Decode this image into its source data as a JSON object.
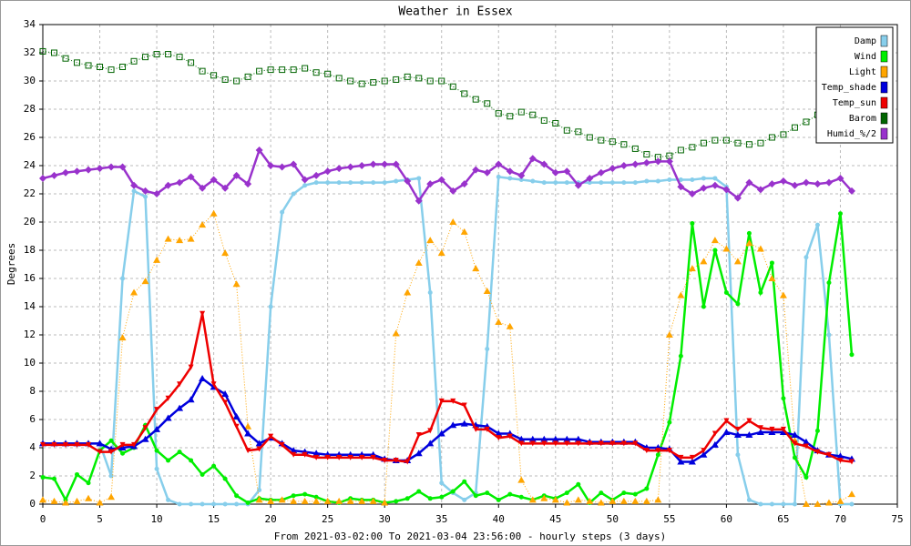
{
  "chart_data": {
    "type": "line",
    "title": "Weather in Essex",
    "y_label": "Degrees",
    "x_label": "From 2021-03-02:00 To 2021-03-04 23:56:00 - hourly steps (3 days)",
    "x": [
      0,
      1,
      2,
      3,
      4,
      5,
      6,
      7,
      8,
      9,
      10,
      11,
      12,
      13,
      14,
      15,
      16,
      17,
      18,
      19,
      20,
      21,
      22,
      23,
      24,
      25,
      26,
      27,
      28,
      29,
      30,
      31,
      32,
      33,
      34,
      35,
      36,
      37,
      38,
      39,
      40,
      41,
      42,
      43,
      44,
      45,
      46,
      47,
      48,
      49,
      50,
      51,
      52,
      53,
      54,
      55,
      56,
      57,
      58,
      59,
      60,
      61,
      62,
      63,
      64,
      65,
      66,
      67,
      68,
      69,
      70,
      71
    ],
    "xlim": [
      0,
      75
    ],
    "xticks": [
      0,
      5,
      10,
      15,
      20,
      25,
      30,
      35,
      40,
      45,
      50,
      55,
      60,
      65,
      70,
      75
    ],
    "ylim": [
      0,
      34
    ],
    "yticks": [
      0,
      2,
      4,
      6,
      8,
      10,
      12,
      14,
      16,
      18,
      20,
      22,
      24,
      26,
      28,
      30,
      32,
      34
    ],
    "grid": true,
    "legend": "top-right",
    "series": [
      {
        "name": "Damp",
        "color": "#87ceeb",
        "marker": "circle",
        "dashed": false,
        "values": [
          4.3,
          4.3,
          4.3,
          4.3,
          4.3,
          4.3,
          2,
          16,
          22.2,
          21.8,
          2.5,
          0.3,
          0,
          0,
          0,
          0,
          0,
          0,
          0,
          1,
          14,
          20.7,
          22,
          22.6,
          22.8,
          22.8,
          22.8,
          22.8,
          22.8,
          22.8,
          22.8,
          22.9,
          23,
          23.1,
          15,
          1.5,
          0.8,
          0.3,
          0.8,
          11,
          23.2,
          23.1,
          23,
          22.9,
          22.8,
          22.8,
          22.8,
          22.8,
          22.8,
          22.8,
          22.8,
          22.8,
          22.8,
          22.9,
          22.9,
          23,
          23,
          23,
          23.1,
          23.1,
          22.5,
          3.5,
          0.3,
          0,
          0,
          0,
          0,
          17.5,
          19.8,
          12,
          0,
          0
        ]
      },
      {
        "name": "Wind",
        "color": "#00ee00",
        "marker": "circle",
        "dashed": false,
        "values": [
          1.9,
          1.8,
          0.3,
          2.1,
          1.5,
          3.8,
          4.5,
          3.6,
          4,
          5.6,
          3.8,
          3.1,
          3.7,
          3.1,
          2.1,
          2.7,
          1.8,
          0.6,
          0.1,
          0.4,
          0.3,
          0.3,
          0.6,
          0.7,
          0.5,
          0.2,
          0.1,
          0.4,
          0.3,
          0.3,
          0.1,
          0.2,
          0.4,
          0.9,
          0.4,
          0.5,
          0.9,
          1.6,
          0.6,
          0.8,
          0.3,
          0.7,
          0.5,
          0.3,
          0.6,
          0.4,
          0.8,
          1.4,
          0.1,
          0.8,
          0.3,
          0.8,
          0.7,
          1.1,
          3.5,
          5.8,
          10.5,
          19.9,
          14,
          18,
          15,
          14.2,
          19.2,
          15,
          17.1,
          7.5,
          3.3,
          1.9,
          5.2,
          15.7,
          20.6,
          10.6
        ]
      },
      {
        "name": "Light",
        "color": "#ffa500",
        "marker": "triangle",
        "dashed": true,
        "values": [
          0.3,
          0.2,
          0.1,
          0.2,
          0.4,
          0.1,
          0.5,
          11.8,
          15,
          15.8,
          17.3,
          18.8,
          18.7,
          18.8,
          19.8,
          20.6,
          17.8,
          15.6,
          5.5,
          0.3,
          0.2,
          0.3,
          0.2,
          0.2,
          0.2,
          0.2,
          0.2,
          0.2,
          0.2,
          0.2,
          0.1,
          12.1,
          15,
          17.1,
          18.7,
          17.8,
          20,
          19.3,
          16.7,
          15.1,
          12.9,
          12.6,
          1.7,
          0.3,
          0.4,
          0.3,
          0.1,
          0.3,
          0.2,
          0.1,
          0.2,
          0.2,
          0.2,
          0.2,
          0.3,
          12,
          14.8,
          16.7,
          17.2,
          18.7,
          18.1,
          17.2,
          18.5,
          18.1,
          16,
          14.8,
          4.5,
          0,
          0,
          0.1,
          0.2,
          0.7
        ]
      },
      {
        "name": "Temp_shade",
        "color": "#0000dd",
        "marker": "triangle",
        "dashed": false,
        "values": [
          4.3,
          4.3,
          4.3,
          4.3,
          4.3,
          4.3,
          3.9,
          4,
          4.1,
          4.6,
          5.3,
          6.1,
          6.8,
          7.4,
          8.9,
          8.3,
          7.8,
          6.2,
          5,
          4.3,
          4.7,
          4.3,
          3.8,
          3.7,
          3.6,
          3.5,
          3.5,
          3.5,
          3.5,
          3.5,
          3.2,
          3.1,
          3.1,
          3.6,
          4.3,
          5,
          5.6,
          5.7,
          5.6,
          5.5,
          5,
          5,
          4.6,
          4.6,
          4.6,
          4.6,
          4.6,
          4.6,
          4.4,
          4.4,
          4.4,
          4.4,
          4.4,
          4,
          4,
          3.9,
          3,
          3,
          3.5,
          4.2,
          5.1,
          4.9,
          4.9,
          5.1,
          5.1,
          5.1,
          4.9,
          4.4,
          3.8,
          3.5,
          3.4,
          3.2
        ]
      },
      {
        "name": "Temp_sun",
        "color": "#ee0000",
        "marker": "vee",
        "dashed": false,
        "values": [
          4.2,
          4.2,
          4.2,
          4.2,
          4.2,
          3.7,
          3.7,
          4.2,
          4.2,
          5.4,
          6.7,
          7.5,
          8.5,
          9.7,
          13.5,
          8.5,
          7.2,
          5.5,
          3.8,
          3.9,
          4.8,
          4.2,
          3.5,
          3.5,
          3.3,
          3.3,
          3.3,
          3.3,
          3.3,
          3.3,
          3.1,
          3.1,
          3,
          4.9,
          5.2,
          7.3,
          7.3,
          7,
          5.3,
          5.3,
          4.7,
          4.8,
          4.3,
          4.3,
          4.3,
          4.3,
          4.3,
          4.3,
          4.3,
          4.3,
          4.3,
          4.3,
          4.3,
          3.8,
          3.8,
          3.8,
          3.3,
          3.3,
          3.8,
          5,
          5.9,
          5.3,
          5.9,
          5.4,
          5.3,
          5.3,
          4.3,
          4.1,
          3.7,
          3.5,
          3.1,
          3
        ]
      },
      {
        "name": "Barom",
        "color": "#006400",
        "marker": "square",
        "dashed": true,
        "values": [
          32.1,
          32,
          31.6,
          31.3,
          31.1,
          31,
          30.8,
          31,
          31.4,
          31.7,
          31.9,
          31.9,
          31.7,
          31.3,
          30.7,
          30.4,
          30.1,
          30,
          30.3,
          30.7,
          30.8,
          30.8,
          30.8,
          30.9,
          30.6,
          30.5,
          30.2,
          30,
          29.8,
          29.9,
          30,
          30.1,
          30.3,
          30.2,
          30,
          30,
          29.6,
          29.1,
          28.7,
          28.4,
          27.7,
          27.5,
          27.8,
          27.6,
          27.2,
          27,
          26.5,
          26.4,
          26,
          25.8,
          25.7,
          25.5,
          25.2,
          24.8,
          24.6,
          24.7,
          25.1,
          25.3,
          25.6,
          25.8,
          25.8,
          25.6,
          25.5,
          25.6,
          26,
          26.2,
          26.7,
          27.1,
          27.6,
          28.1,
          28.5,
          28.9
        ]
      },
      {
        "name": "Humid_%/2",
        "color": "#9932cc",
        "marker": "diamond",
        "dashed": false,
        "values": [
          23.1,
          23.3,
          23.5,
          23.6,
          23.7,
          23.8,
          23.9,
          23.9,
          22.6,
          22.2,
          22,
          22.6,
          22.8,
          23.2,
          22.4,
          23,
          22.4,
          23.3,
          22.7,
          25.1,
          24,
          23.9,
          24.1,
          23,
          23.3,
          23.6,
          23.8,
          23.9,
          24,
          24.1,
          24.1,
          24.1,
          22.9,
          21.5,
          22.7,
          23,
          22.2,
          22.7,
          23.7,
          23.5,
          24.1,
          23.6,
          23.3,
          24.5,
          24.1,
          23.5,
          23.6,
          22.6,
          23.1,
          23.5,
          23.8,
          24,
          24.1,
          24.2,
          24.3,
          24.3,
          22.5,
          22,
          22.4,
          22.6,
          22.3,
          21.7,
          22.8,
          22.3,
          22.7,
          22.9,
          22.6,
          22.8,
          22.7,
          22.8,
          23.1,
          22.2
        ]
      }
    ]
  }
}
